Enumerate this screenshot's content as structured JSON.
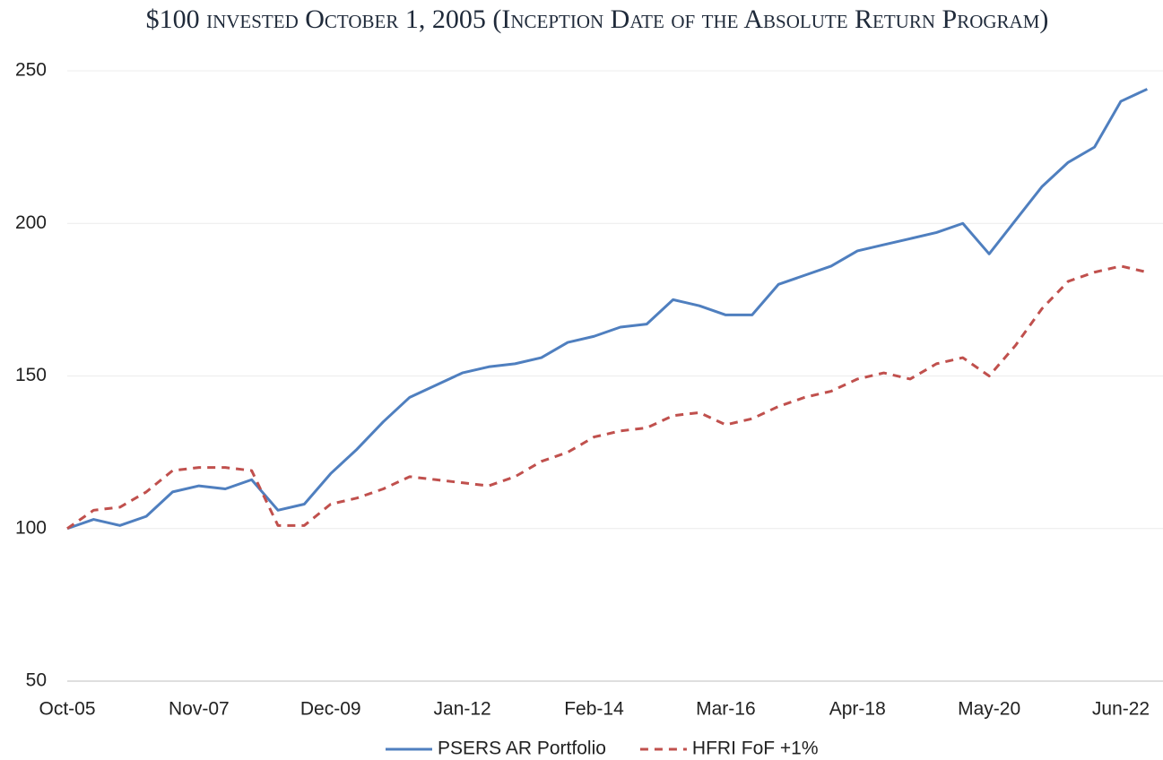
{
  "chart_data": {
    "type": "line",
    "title": "$100 invested October 1, 2005 (Inception Date of the Absolute Return Program)",
    "categories": [
      "Oct-05",
      null,
      null,
      null,
      null,
      "Nov-07",
      null,
      null,
      null,
      null,
      "Dec-09",
      null,
      null,
      null,
      null,
      "Jan-12",
      null,
      null,
      null,
      null,
      "Feb-14",
      null,
      null,
      null,
      null,
      "Mar-16",
      null,
      null,
      null,
      null,
      "Apr-18",
      null,
      null,
      null,
      null,
      "May-20",
      null,
      null,
      null,
      null,
      "Jun-22",
      null
    ],
    "series": [
      {
        "name": "PSERS AR Portfolio",
        "color": "#4f7fbf",
        "dash": false,
        "values": [
          100,
          103,
          101,
          104,
          112,
          114,
          113,
          116,
          106,
          108,
          118,
          126,
          135,
          143,
          147,
          151,
          153,
          154,
          156,
          161,
          163,
          166,
          167,
          175,
          173,
          170,
          170,
          180,
          183,
          186,
          191,
          193,
          195,
          197,
          200,
          190,
          201,
          212,
          220,
          225,
          240,
          244
        ]
      },
      {
        "name": "HFRI FoF +1%",
        "color": "#c0504d",
        "dash": true,
        "values": [
          100,
          106,
          107,
          112,
          119,
          120,
          120,
          119,
          101,
          101,
          108,
          110,
          113,
          117,
          116,
          115,
          114,
          117,
          122,
          125,
          130,
          132,
          133,
          137,
          138,
          134,
          136,
          140,
          143,
          145,
          149,
          151,
          149,
          154,
          156,
          150,
          160,
          172,
          181,
          184,
          186,
          184
        ]
      }
    ],
    "ylim": [
      50,
      250
    ],
    "yticks": [
      50,
      100,
      150,
      200,
      250
    ],
    "grid": true,
    "legend": "bottom"
  }
}
